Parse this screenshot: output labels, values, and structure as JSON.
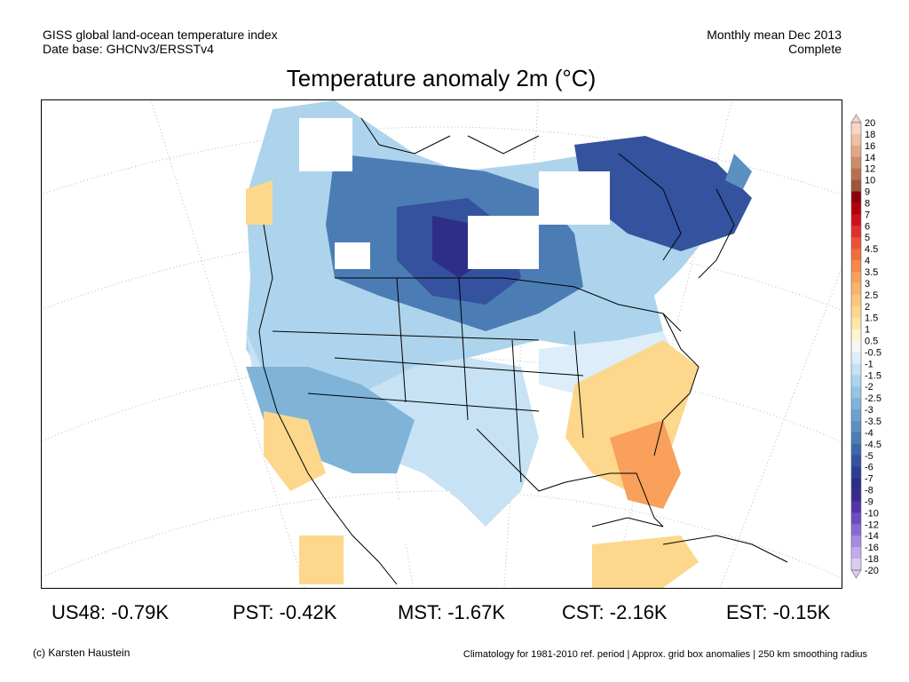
{
  "header": {
    "line1": "GISS global land-ocean temperature index",
    "line2": "Date base: GHCNv3/ERSSTv4",
    "right1": "Monthly mean Dec 2013",
    "right2": "Complete"
  },
  "title": "Temperature anomaly 2m (°C)",
  "legend": {
    "labels": [
      "20",
      "18",
      "16",
      "14",
      "12",
      "10",
      "9",
      "8",
      "7",
      "6",
      "5",
      "4.5",
      "4",
      "3.5",
      "3",
      "2.5",
      "2",
      "1.5",
      "1",
      "0.5",
      "-0.5",
      "-1",
      "-1.5",
      "-2",
      "-2.5",
      "-3",
      "-3.5",
      "-4",
      "-4.5",
      "-5",
      "-6",
      "-7",
      "-8",
      "-9",
      "-10",
      "-12",
      "-14",
      "-16",
      "-18",
      "-20"
    ],
    "colors": [
      "#f6d6c6",
      "#eec0a6",
      "#e0a888",
      "#cc8c6c",
      "#b8704e",
      "#a05638",
      "#8e0010",
      "#b30010",
      "#d0101c",
      "#e03028",
      "#ec5034",
      "#f06e3c",
      "#f48848",
      "#f8a05c",
      "#f9b46c",
      "#fbc67c",
      "#fdd78c",
      "#fee6a4",
      "#fff4cc",
      "#f6f6f6",
      "#ddeefa",
      "#c6e2f4",
      "#add4ec",
      "#96c5e2",
      "#7fb3d8",
      "#6ca2cc",
      "#5b90c0",
      "#4c7cb4",
      "#3e66a8",
      "#34529e",
      "#2d3e94",
      "#2c2e88",
      "#3a2a90",
      "#5234a8",
      "#6c4cc0",
      "#8a6ad2",
      "#a88ade",
      "#c4aaea",
      "#dcccf4"
    ]
  },
  "stats": [
    {
      "label": "US48: -0.79K"
    },
    {
      "label": "PST: -0.42K"
    },
    {
      "label": "MST: -1.67K"
    },
    {
      "label": "CST: -2.16K"
    },
    {
      "label": "EST: -0.15K"
    }
  ],
  "footer": {
    "left": "(c) Karsten Haustein",
    "right": "Climatology for 1981-2010 ref. period | Approx. grid box anomalies | 250 km smoothing radius"
  }
}
